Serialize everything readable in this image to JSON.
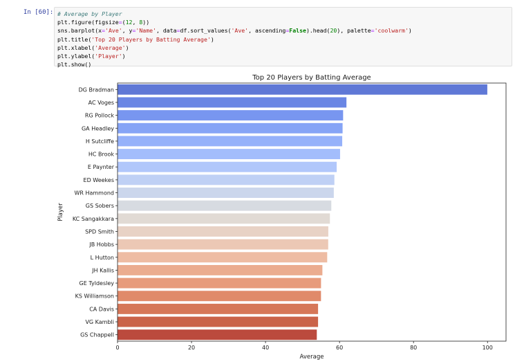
{
  "cell": {
    "prompt": "In [60]:",
    "code_lines": [
      [
        {
          "t": "# Average by Player",
          "c": "comment"
        }
      ],
      [
        {
          "t": "plt.figure(figsize",
          "c": ""
        },
        {
          "t": "=",
          "c": "op"
        },
        {
          "t": "(",
          "c": ""
        },
        {
          "t": "12",
          "c": "num"
        },
        {
          "t": ", ",
          "c": ""
        },
        {
          "t": "8",
          "c": "num"
        },
        {
          "t": "))",
          "c": ""
        }
      ],
      [
        {
          "t": "sns.barplot(x",
          "c": ""
        },
        {
          "t": "=",
          "c": "op"
        },
        {
          "t": "'Ave'",
          "c": "str"
        },
        {
          "t": ", y",
          "c": ""
        },
        {
          "t": "=",
          "c": "op"
        },
        {
          "t": "'Name'",
          "c": "str"
        },
        {
          "t": ", data",
          "c": ""
        },
        {
          "t": "=",
          "c": "op"
        },
        {
          "t": "df.sort_values(",
          "c": ""
        },
        {
          "t": "'Ave'",
          "c": "str"
        },
        {
          "t": ", ascending",
          "c": ""
        },
        {
          "t": "=",
          "c": "op"
        },
        {
          "t": "False",
          "c": "kw"
        },
        {
          "t": ").head(",
          "c": ""
        },
        {
          "t": "20",
          "c": "num"
        },
        {
          "t": "), palette",
          "c": ""
        },
        {
          "t": "=",
          "c": "op"
        },
        {
          "t": "'coolwarm'",
          "c": "str"
        },
        {
          "t": ")",
          "c": ""
        }
      ],
      [
        {
          "t": "plt.title(",
          "c": ""
        },
        {
          "t": "'Top 20 Players by Batting Average'",
          "c": "str"
        },
        {
          "t": ")",
          "c": ""
        }
      ],
      [
        {
          "t": "plt.xlabel(",
          "c": ""
        },
        {
          "t": "'Average'",
          "c": "str"
        },
        {
          "t": ")",
          "c": ""
        }
      ],
      [
        {
          "t": "plt.ylabel(",
          "c": ""
        },
        {
          "t": "'Player'",
          "c": "str"
        },
        {
          "t": ")",
          "c": ""
        }
      ],
      [
        {
          "t": "plt.show()",
          "c": ""
        }
      ]
    ]
  },
  "chart_data": {
    "type": "bar",
    "orientation": "horizontal",
    "title": "Top 20 Players by Batting Average",
    "xlabel": "Average",
    "ylabel": "Player",
    "xlim": [
      0,
      105
    ],
    "xticks": [
      0,
      20,
      40,
      60,
      80,
      100
    ],
    "grid": false,
    "categories": [
      "DG Bradman",
      "AC Voges",
      "RG Pollock",
      "GA Headley",
      "H Sutcliffe",
      "HC Brook",
      "E Paynter",
      "ED Weekes",
      "WR Hammond",
      "GS Sobers",
      "KC Sangakkara",
      "SPD Smith",
      "JB Hobbs",
      "L Hutton",
      "JH Kallis",
      "GE Tyldesley",
      "KS Williamson",
      "CA Davis",
      "VG Kambli",
      "GS Chappell"
    ],
    "values": [
      99.94,
      61.87,
      60.97,
      60.83,
      60.73,
      60.15,
      59.23,
      58.61,
      58.45,
      57.78,
      57.4,
      56.97,
      56.94,
      56.67,
      55.37,
      55.0,
      54.99,
      54.2,
      54.2,
      53.86
    ],
    "colors": [
      "#5f78d6",
      "#6a86e4",
      "#7896f0",
      "#86a4f6",
      "#95b1fa",
      "#a3bdfc",
      "#b1c7fb",
      "#bfd0f5",
      "#cbd6ec",
      "#d7dbe1",
      "#e1dad4",
      "#e8d2c5",
      "#ecc8b5",
      "#eebca3",
      "#ebac8f",
      "#e79b7c",
      "#e08a6a",
      "#d67758",
      "#ca6349",
      "#bb4a3d"
    ]
  }
}
